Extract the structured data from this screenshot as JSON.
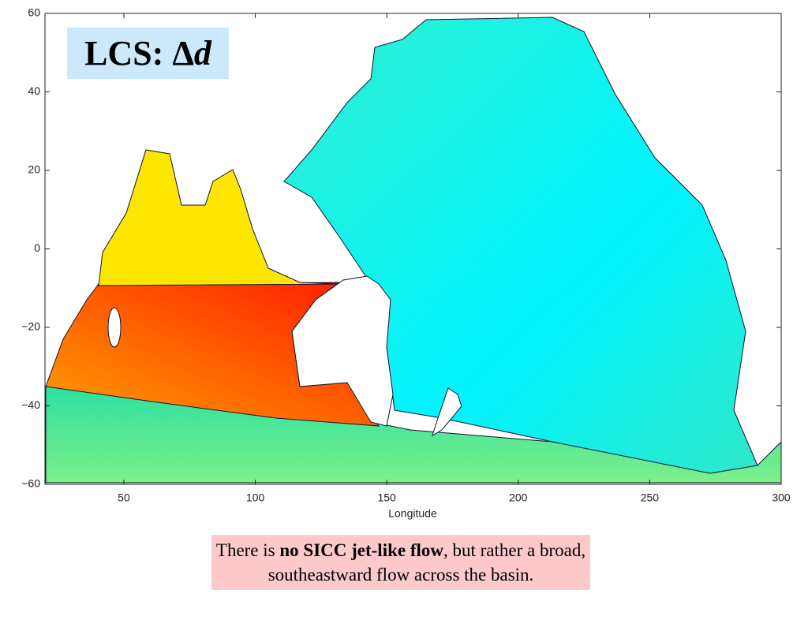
{
  "map": {
    "title": [
      "LCS: ",
      "Δ",
      "d"
    ],
    "x_label": "Longitude",
    "xlim": [
      20,
      300
    ],
    "ylim": [
      -60,
      60
    ],
    "xticks": [
      50,
      100,
      150,
      200,
      250,
      300
    ],
    "yticks": [
      60,
      40,
      20,
      0,
      {
        "value": -20,
        "label": "−20"
      },
      {
        "value": -40,
        "label": "−40"
      },
      {
        "value": -60,
        "label": "−60"
      }
    ]
  },
  "caption": [
    "There is ",
    "no SICC jet-like flow",
    ", but rather a broad, southeastward flow across the basin."
  ]
}
